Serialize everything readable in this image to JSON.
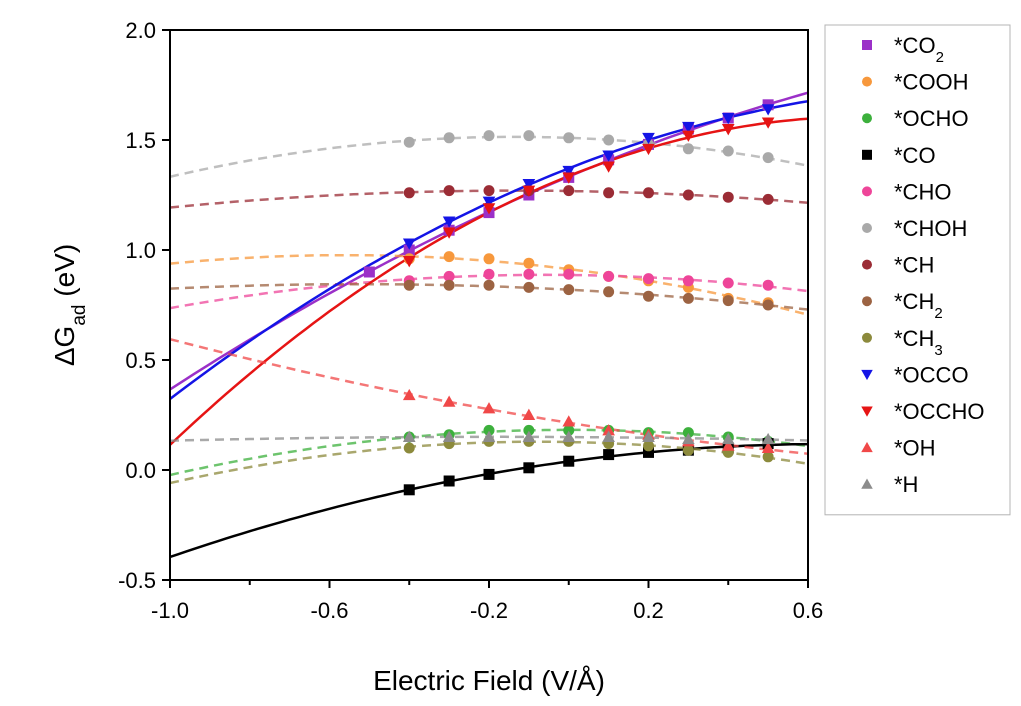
{
  "chart_data": {
    "type": "scatter",
    "title": "",
    "xlabel": "Electric Field (V/Å)",
    "ylabel_main": "ΔG",
    "ylabel_sub": "ad",
    "ylabel_unit": " (eV)",
    "xlim": [
      -1.0,
      0.6
    ],
    "ylim": [
      -0.5,
      2.0
    ],
    "xticks": [
      -1.0,
      -0.6,
      -0.2,
      0.2,
      0.6
    ],
    "xtick_labels": [
      "-1.0",
      "-0.6",
      "-0.2",
      "0.2",
      "0.6"
    ],
    "yticks": [
      -0.5,
      0.0,
      0.5,
      1.0,
      1.5,
      2.0
    ],
    "ytick_labels": [
      "-0.5",
      "0.0",
      "0.5",
      "1.0",
      "1.5",
      "2.0"
    ],
    "grid": false,
    "legend_position": "right, outside plot",
    "series": [
      {
        "name": "*CO",
        "name_main": "*CO",
        "name_sub": "2",
        "color": "#9b30c8",
        "marker": "square",
        "fit": "solid",
        "x": [
          -0.5,
          -0.4,
          -0.3,
          -0.2,
          -0.1,
          0.0,
          0.1,
          0.2,
          0.3,
          0.4,
          0.5
        ],
        "y": [
          0.9,
          1.0,
          1.09,
          1.17,
          1.25,
          1.33,
          1.41,
          1.48,
          1.55,
          1.6,
          1.66
        ]
      },
      {
        "name": "*COOH",
        "color": "#f7983c",
        "marker": "circle",
        "fit": "dashed",
        "x": [
          -0.4,
          -0.3,
          -0.2,
          -0.1,
          0.0,
          0.1,
          0.2,
          0.3,
          0.4,
          0.5
        ],
        "y": [
          0.96,
          0.97,
          0.96,
          0.94,
          0.91,
          0.88,
          0.86,
          0.83,
          0.78,
          0.76
        ]
      },
      {
        "name": "*OCHO",
        "color": "#3cb03c",
        "marker": "circle",
        "fit": "dashed",
        "x": [
          -0.4,
          -0.3,
          -0.2,
          -0.1,
          0.0,
          0.1,
          0.2,
          0.3,
          0.4,
          0.5
        ],
        "y": [
          0.15,
          0.16,
          0.18,
          0.18,
          0.18,
          0.18,
          0.17,
          0.17,
          0.15,
          0.13
        ]
      },
      {
        "name": "*CO",
        "color": "#000000",
        "marker": "square",
        "fit": "solid",
        "x": [
          -0.4,
          -0.3,
          -0.2,
          -0.1,
          0.0,
          0.1,
          0.2,
          0.3,
          0.4,
          0.5
        ],
        "y": [
          -0.09,
          -0.05,
          -0.02,
          0.01,
          0.04,
          0.07,
          0.08,
          0.09,
          0.1,
          0.12
        ]
      },
      {
        "name": "*CHO",
        "color": "#ee4599",
        "marker": "circle",
        "fit": "dashed",
        "x": [
          -0.4,
          -0.3,
          -0.2,
          -0.1,
          0.0,
          0.1,
          0.2,
          0.3,
          0.4,
          0.5
        ],
        "y": [
          0.86,
          0.88,
          0.89,
          0.89,
          0.89,
          0.88,
          0.87,
          0.86,
          0.85,
          0.84
        ]
      },
      {
        "name": "*CHOH",
        "color": "#a9a9a9",
        "marker": "circle",
        "fit": "dashed",
        "x": [
          -0.4,
          -0.3,
          -0.2,
          -0.1,
          0.0,
          0.1,
          0.2,
          0.3,
          0.4,
          0.5
        ],
        "y": [
          1.49,
          1.51,
          1.52,
          1.52,
          1.51,
          1.5,
          1.48,
          1.46,
          1.45,
          1.42
        ]
      },
      {
        "name": "*CH",
        "color": "#9b2c35",
        "marker": "circle",
        "fit": "dashed",
        "x": [
          -0.4,
          -0.3,
          -0.2,
          -0.1,
          0.0,
          0.1,
          0.2,
          0.3,
          0.4,
          0.5
        ],
        "y": [
          1.26,
          1.27,
          1.27,
          1.27,
          1.27,
          1.26,
          1.26,
          1.25,
          1.24,
          1.23
        ]
      },
      {
        "name": "*CH",
        "name_main": "*CH",
        "name_sub": "2",
        "color": "#9c6342",
        "marker": "circle",
        "fit": "dashed",
        "x": [
          -0.4,
          -0.3,
          -0.2,
          -0.1,
          0.0,
          0.1,
          0.2,
          0.3,
          0.4,
          0.5
        ],
        "y": [
          0.84,
          0.84,
          0.84,
          0.83,
          0.82,
          0.81,
          0.79,
          0.78,
          0.77,
          0.75
        ]
      },
      {
        "name": "*CH",
        "name_main": "*CH",
        "name_sub": "3",
        "color": "#8c8a3c",
        "marker": "circle",
        "fit": "dashed",
        "x": [
          -0.4,
          -0.3,
          -0.2,
          -0.1,
          0.0,
          0.1,
          0.2,
          0.3,
          0.4,
          0.5
        ],
        "y": [
          0.1,
          0.12,
          0.13,
          0.13,
          0.13,
          0.12,
          0.11,
          0.09,
          0.08,
          0.06
        ]
      },
      {
        "name": "*OCCO",
        "color": "#1414e6",
        "marker": "triangle-down",
        "fit": "solid",
        "x": [
          -0.4,
          -0.3,
          -0.2,
          -0.1,
          0.0,
          0.1,
          0.2,
          0.3,
          0.4,
          0.5
        ],
        "y": [
          1.03,
          1.13,
          1.22,
          1.3,
          1.36,
          1.43,
          1.51,
          1.56,
          1.6,
          1.64
        ]
      },
      {
        "name": "*OCCHO",
        "color": "#e61414",
        "marker": "triangle-down",
        "fit": "solid",
        "x": [
          -0.4,
          -0.3,
          -0.2,
          -0.1,
          0.0,
          0.1,
          0.2,
          0.3,
          0.4,
          0.5
        ],
        "y": [
          0.95,
          1.08,
          1.19,
          1.27,
          1.33,
          1.38,
          1.46,
          1.52,
          1.55,
          1.58
        ]
      },
      {
        "name": "*OH",
        "color": "#f04848",
        "marker": "triangle-up",
        "fit": "dashed",
        "x": [
          -0.4,
          -0.3,
          -0.2,
          -0.1,
          0.0,
          0.1,
          0.2,
          0.3,
          0.4,
          0.5
        ],
        "y": [
          0.34,
          0.31,
          0.28,
          0.25,
          0.22,
          0.18,
          0.16,
          0.13,
          0.11,
          0.1
        ]
      },
      {
        "name": "*H",
        "color": "#8c8c8c",
        "marker": "triangle-up",
        "fit": "dashed",
        "x": [
          -0.4,
          -0.3,
          -0.2,
          -0.1,
          0.0,
          0.1,
          0.2,
          0.3,
          0.4,
          0.5
        ],
        "y": [
          0.15,
          0.15,
          0.15,
          0.15,
          0.15,
          0.15,
          0.15,
          0.14,
          0.14,
          0.14
        ]
      }
    ]
  }
}
